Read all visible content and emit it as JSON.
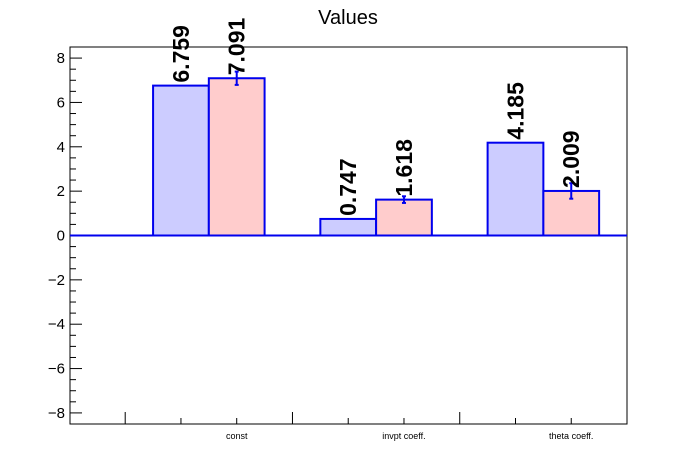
{
  "chart_data": {
    "type": "bar",
    "title": "Values",
    "xlabel": "",
    "ylabel": "",
    "categories": [
      "const",
      "invpt coeff.",
      "theta coeff."
    ],
    "series": [
      {
        "values": [
          6.759,
          0.747,
          4.185
        ],
        "errors": [
          0,
          0,
          0
        ],
        "color": "#ccccff"
      },
      {
        "values": [
          7.091,
          1.618,
          2.009
        ],
        "errors": [
          0.3,
          0.15,
          0.35
        ],
        "color": "#ffcccc"
      }
    ],
    "data_labels": [
      [
        "6.759",
        "0.747",
        "4.185"
      ],
      [
        "7.091",
        "1.618",
        "2.009"
      ]
    ],
    "ylim": [
      -8.5,
      8.5
    ],
    "yticks": [
      -8,
      -6,
      -4,
      -2,
      0,
      2,
      4,
      6,
      8
    ],
    "ytick_labels": [
      "−8",
      "−6",
      "−4",
      "−2",
      "0",
      "2",
      "4",
      "6",
      "8"
    ],
    "edge_color": "#0000ee",
    "grid": false,
    "legend": "none"
  }
}
